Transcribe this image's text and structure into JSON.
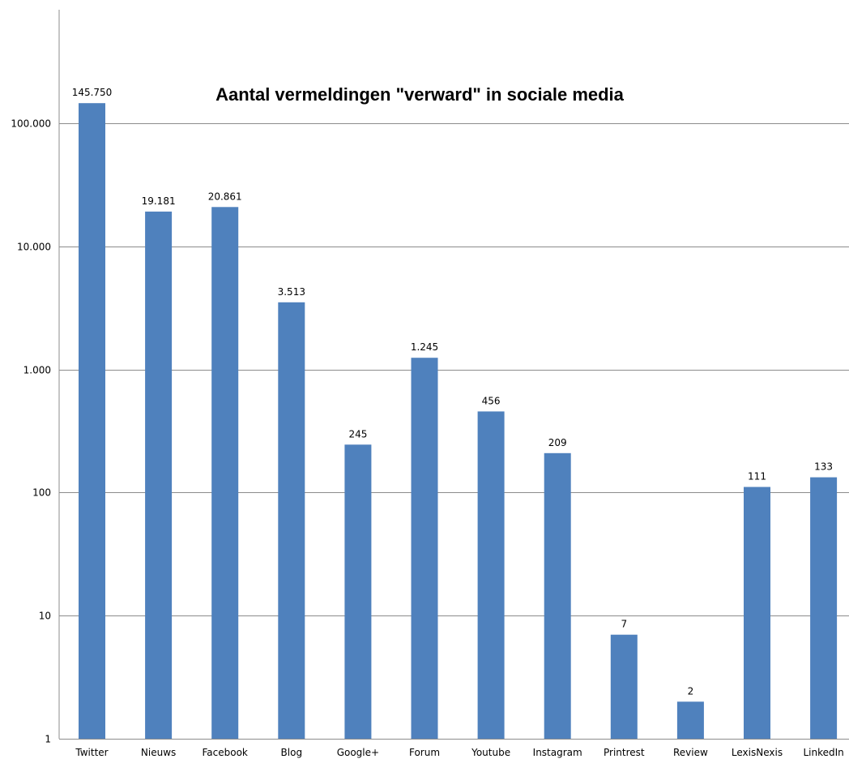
{
  "chart_data": {
    "type": "bar",
    "title": "Aantal vermeldingen \"verward\" in sociale media",
    "xlabel": "",
    "ylabel": "",
    "y_scale": "log",
    "ylim": [
      1,
      1000000
    ],
    "grid": true,
    "legend": "none",
    "bar_color": "#4F81BD",
    "y_ticks": [
      1,
      10,
      100,
      1000,
      10000,
      100000
    ],
    "y_tick_labels": [
      "1",
      "10",
      "100",
      "1.000",
      "10.000",
      "100.000"
    ],
    "categories": [
      "Twitter",
      "Nieuws",
      "Facebook",
      "Blog",
      "Google+",
      "Forum",
      "Youtube",
      "Instagram",
      "Printrest",
      "Review",
      "LexisNexis",
      "LinkedIn"
    ],
    "values": [
      145750,
      19181,
      20861,
      3513,
      245,
      1245,
      456,
      209,
      7,
      2,
      111,
      133
    ],
    "data_labels": [
      "145.750",
      "19.181",
      "20.861",
      "3.513",
      "245",
      "1.245",
      "456",
      "209",
      "7",
      "2",
      "111",
      "133"
    ]
  }
}
